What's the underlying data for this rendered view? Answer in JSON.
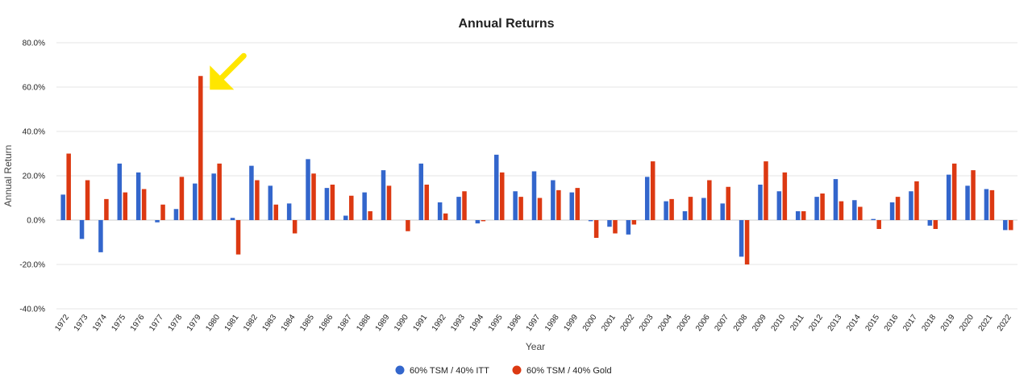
{
  "chart_data": {
    "type": "bar",
    "title": "Annual Returns",
    "xlabel": "Year",
    "ylabel": "Annual Return",
    "ylim": [
      -40,
      80
    ],
    "yticks": [
      -40,
      -20,
      0,
      20,
      40,
      60,
      80
    ],
    "ytick_labels": [
      "-40.0%",
      "-20.0%",
      "0.0%",
      "20.0%",
      "40.0%",
      "60.0%",
      "80.0%"
    ],
    "grid": true,
    "legend_position": "bottom",
    "categories": [
      "1972",
      "1973",
      "1974",
      "1975",
      "1976",
      "1977",
      "1978",
      "1979",
      "1980",
      "1981",
      "1982",
      "1983",
      "1984",
      "1985",
      "1986",
      "1987",
      "1988",
      "1989",
      "1990",
      "1991",
      "1992",
      "1993",
      "1994",
      "1995",
      "1996",
      "1997",
      "1998",
      "1999",
      "2000",
      "2001",
      "2002",
      "2003",
      "2004",
      "2005",
      "2006",
      "2007",
      "2008",
      "2009",
      "2010",
      "2011",
      "2012",
      "2013",
      "2014",
      "2015",
      "2016",
      "2017",
      "2018",
      "2019",
      "2020",
      "2021",
      "2022"
    ],
    "series": [
      {
        "name": "60% TSM / 40% ITT",
        "color": "#3366cc",
        "values": [
          11.5,
          -8.5,
          -14.5,
          25.5,
          21.5,
          -1.0,
          5.0,
          16.5,
          21.0,
          1.0,
          24.5,
          15.5,
          7.5,
          27.5,
          14.5,
          2.0,
          12.5,
          22.5,
          0.0,
          25.5,
          8.0,
          10.5,
          -1.5,
          29.5,
          13.0,
          22.0,
          18.0,
          12.5,
          -0.5,
          -3.0,
          -6.5,
          19.5,
          8.5,
          4.0,
          10.0,
          7.5,
          -16.5,
          16.0,
          13.0,
          4.0,
          10.5,
          18.5,
          9.0,
          0.5,
          8.0,
          13.0,
          -2.5,
          20.5,
          15.5,
          14.0,
          -4.5
        ]
      },
      {
        "name": "60% TSM / 40% Gold",
        "color": "#dc3912",
        "values": [
          30.0,
          18.0,
          9.5,
          12.5,
          14.0,
          7.0,
          19.5,
          65.0,
          25.5,
          -15.5,
          18.0,
          7.0,
          -6.0,
          21.0,
          16.0,
          11.0,
          4.0,
          15.5,
          -5.0,
          16.0,
          3.0,
          13.0,
          -0.5,
          21.5,
          10.5,
          10.0,
          13.5,
          14.5,
          -8.0,
          -6.0,
          -2.0,
          26.5,
          9.5,
          10.5,
          18.0,
          15.0,
          -20.0,
          26.5,
          21.5,
          4.0,
          12.0,
          8.5,
          6.0,
          -4.0,
          10.5,
          17.5,
          -4.0,
          25.5,
          22.5,
          13.5,
          -4.5
        ]
      }
    ],
    "annotation": {
      "type": "arrow",
      "color": "#ffe600",
      "points_to_category": "1979",
      "points_to_value": 65.0
    }
  }
}
